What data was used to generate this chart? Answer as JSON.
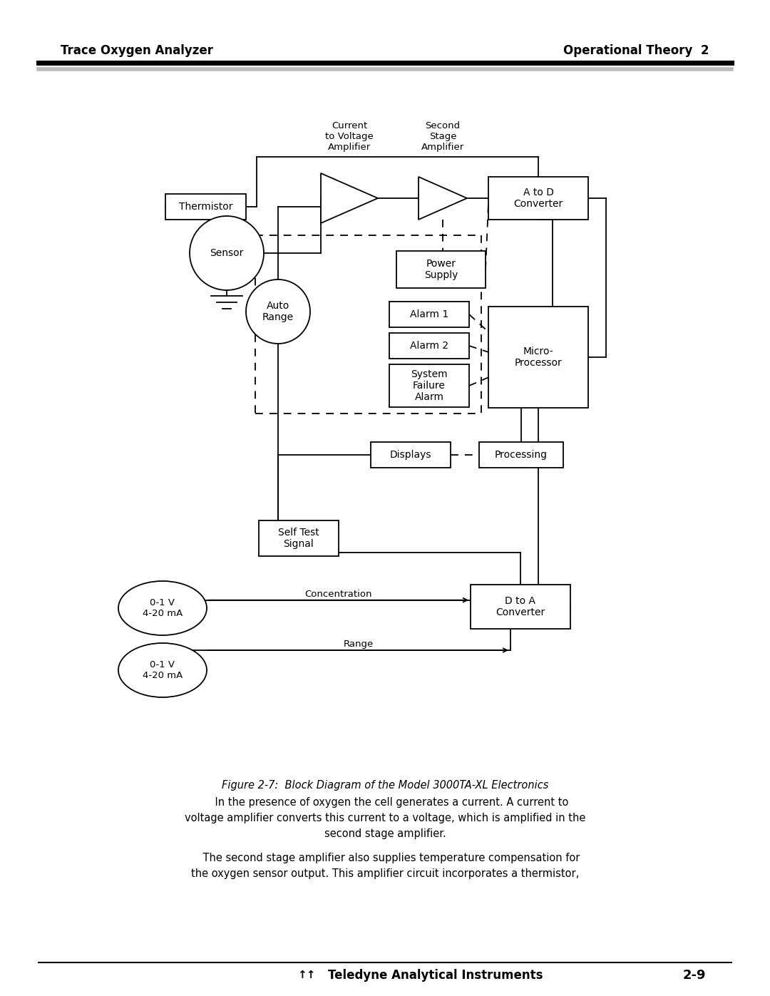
{
  "page_title_left": "Trace Oxygen Analyzer",
  "page_title_right": "Operational Theory  2",
  "page_number": "2-9",
  "footer_text": "Teledyne Analytical Instruments",
  "figure_caption": "Figure 2-7:  Block Diagram of the Model 3000TA-XL Electronics",
  "body_text_1": "    In the presence of oxygen the cell generates a current. A current to\nvoltage amplifier converts this current to a voltage, which is amplified in the\nsecond stage amplifier.",
  "body_text_2": "    The second stage amplifier also supplies temperature compensation for\nthe oxygen sensor output. This amplifier circuit incorporates a thermistor,",
  "bg_color": "#ffffff"
}
